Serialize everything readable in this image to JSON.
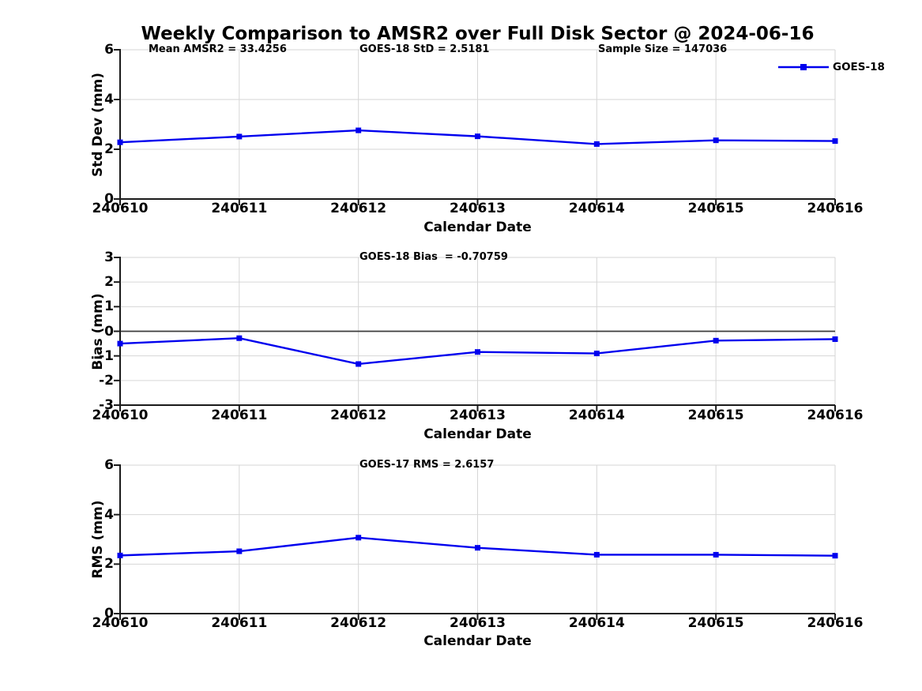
{
  "title": "Weekly Comparison to AMSR2 over Full Disk Sector @ 2024-06-16",
  "legend": {
    "label": "GOES-18"
  },
  "colors": {
    "line": "#0000ee",
    "grid": "#d6d6d6",
    "axis": "#1a1a1a",
    "zero_line": "#3c3c3c",
    "background": "#ffffff",
    "text": "#000000"
  },
  "chart_data": [
    {
      "type": "line",
      "id": "std-dev",
      "ylabel": "Std Dev (mm)",
      "xlabel": "Calendar Date",
      "categories": [
        "240610",
        "240611",
        "240612",
        "240613",
        "240614",
        "240615",
        "240616"
      ],
      "series": [
        {
          "name": "GOES-18",
          "marker": "square",
          "values": [
            2.28,
            2.51,
            2.76,
            2.52,
            2.21,
            2.36,
            2.33
          ]
        }
      ],
      "ylim": [
        0,
        6
      ],
      "yticks": [
        0,
        2,
        4,
        6
      ],
      "grid": true,
      "legend_position": "top-right",
      "annotations": [
        {
          "text": "Mean AMSR2 = 33.4256"
        },
        {
          "text": "GOES-18 StD = 2.5181"
        },
        {
          "text": "Sample Size = 147036"
        }
      ]
    },
    {
      "type": "line",
      "id": "bias",
      "ylabel": "Bias (mm)",
      "xlabel": "Calendar Date",
      "categories": [
        "240610",
        "240611",
        "240612",
        "240613",
        "240614",
        "240615",
        "240616"
      ],
      "series": [
        {
          "name": "GOES-18",
          "marker": "square",
          "values": [
            -0.5,
            -0.28,
            -1.33,
            -0.84,
            -0.9,
            -0.38,
            -0.32
          ]
        }
      ],
      "ylim": [
        -3,
        3
      ],
      "yticks": [
        3,
        2,
        1,
        0,
        -1,
        -2,
        -3
      ],
      "grid": true,
      "zero_line": true,
      "annotations": [
        {
          "text": "GOES-18 Bias  = -0.70759"
        }
      ]
    },
    {
      "type": "line",
      "id": "rms",
      "ylabel": "RMS (mm)",
      "xlabel": "Calendar Date",
      "categories": [
        "240610",
        "240611",
        "240612",
        "240613",
        "240614",
        "240615",
        "240616"
      ],
      "series": [
        {
          "name": "GOES-18",
          "marker": "square",
          "values": [
            2.35,
            2.52,
            3.07,
            2.66,
            2.38,
            2.38,
            2.34
          ]
        }
      ],
      "ylim": [
        0,
        6
      ],
      "yticks": [
        0,
        2,
        4,
        6
      ],
      "grid": true,
      "annotations": [
        {
          "text": "GOES-17 RMS = 2.6157"
        }
      ]
    }
  ]
}
